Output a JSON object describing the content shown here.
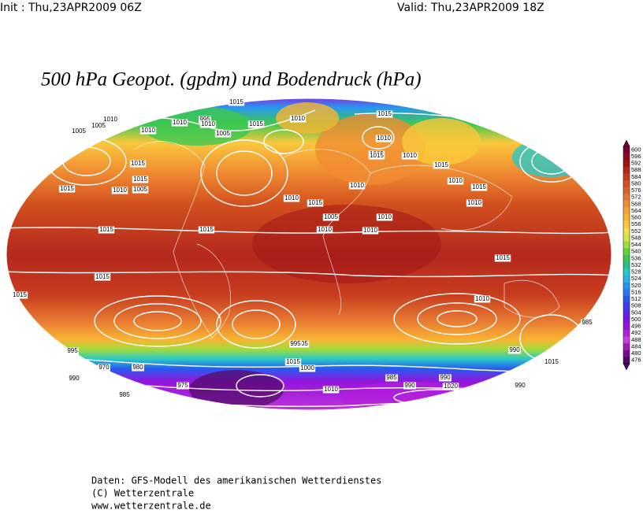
{
  "header": {
    "init": "Init : Thu,23APR2009 06Z",
    "valid": "Valid: Thu,23APR2009 18Z"
  },
  "title": "500 hPa Geopot. (gpdm) und Bodendruck (hPa)",
  "colorbar": {
    "labels": [
      600,
      596,
      592,
      588,
      584,
      580,
      576,
      572,
      568,
      564,
      560,
      556,
      552,
      548,
      544,
      540,
      536,
      532,
      528,
      524,
      520,
      516,
      512,
      508,
      504,
      500,
      496,
      492,
      488,
      484,
      480,
      476
    ],
    "colors": [
      "#7a0034",
      "#8c0a1e",
      "#a01414",
      "#b4281e",
      "#c83c1e",
      "#d2501e",
      "#dc6428",
      "#e67832",
      "#f08c32",
      "#f5a032",
      "#fab432",
      "#fac83c",
      "#f5dc50",
      "#d2e646",
      "#a0dc3c",
      "#64d23c",
      "#3cc850",
      "#28be8c",
      "#28c8c8",
      "#28b4e6",
      "#2896f0",
      "#2878f0",
      "#285af0",
      "#3c3cf0",
      "#5a28e6",
      "#7814e6",
      "#9614dc",
      "#b41edc",
      "#c83cdc",
      "#a01eb4",
      "#780a8c",
      "#500a64"
    ]
  },
  "isobar_labels": [
    "1015",
    "1005",
    "1010",
    "1005",
    "1015",
    "1010",
    "1005",
    "1010",
    "1015",
    "995",
    "1005",
    "1010",
    "1015",
    "1010",
    "1010",
    "1015",
    "1005",
    "1010",
    "1010",
    "1015",
    "1010",
    "1015",
    "1010",
    "1015",
    "1010",
    "1010",
    "1005",
    "1010",
    "1010",
    "1015",
    "1015",
    "1015",
    "1010",
    "1015",
    "1015",
    "1015",
    "1005",
    "995",
    "990",
    "995",
    "970",
    "980",
    "985",
    "975",
    "990",
    "1000",
    "1015",
    "985",
    "990",
    "985",
    "990",
    "1010",
    "1020",
    "1015",
    "1010",
    "1015",
    "990"
  ],
  "footer": [
    "Daten: GFS-Modell des amerikanischen Wetterdienstes",
    "(C) Wetterzentrale",
    "www.wetterzentrale.de"
  ]
}
